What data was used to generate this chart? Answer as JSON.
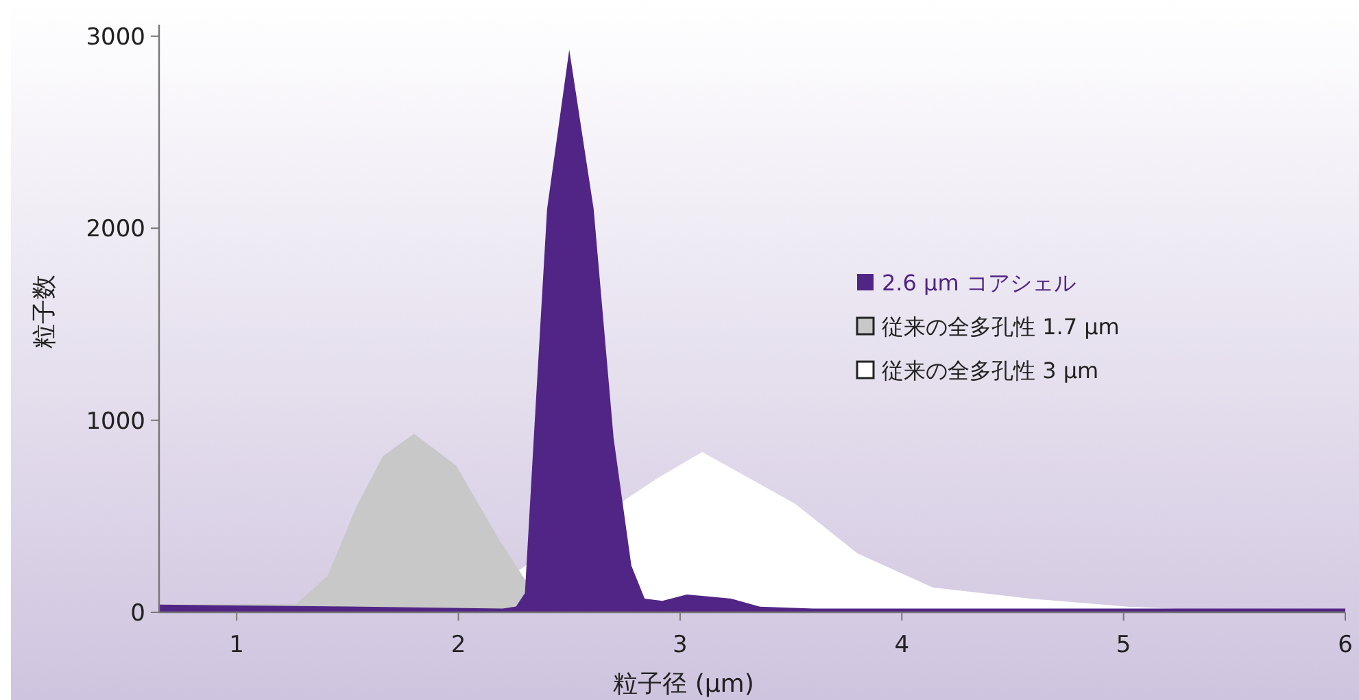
{
  "chart_data": {
    "type": "area",
    "xlabel": "粒子径 (µm)",
    "ylabel": "粒子数",
    "xlim": [
      0.65,
      6
    ],
    "xticks": [
      1,
      2,
      3,
      4,
      5,
      6
    ],
    "ylim": [
      0,
      3060
    ],
    "yticks": [
      0,
      1000,
      2000,
      3000
    ],
    "grid": false,
    "legend": "right",
    "series": [
      {
        "name": "2.6 µm コアシェル",
        "color": "#512585",
        "x": [
          0.65,
          1.5,
          2.2,
          2.26,
          2.3,
          2.34,
          2.4,
          2.5,
          2.61,
          2.7,
          2.78,
          2.84,
          2.92,
          3.03,
          3.15,
          3.23,
          3.36,
          3.6,
          4,
          5,
          6
        ],
        "values": [
          40,
          30,
          20,
          30,
          100,
          907,
          2100,
          2930,
          2100,
          907,
          243,
          71,
          60,
          93,
          80,
          71,
          29,
          20,
          20,
          20,
          20
        ]
      },
      {
        "name": "従来の全多孔性 1.7 µm",
        "color": "#c8c8c8",
        "x": [
          0.65,
          1.27,
          1.41,
          1.54,
          1.66,
          1.8,
          1.99,
          2.18,
          2.3,
          2.5
        ],
        "values": [
          40,
          45,
          190,
          550,
          814,
          930,
          764,
          386,
          171,
          0
        ]
      },
      {
        "name": "従来の全多孔性 3 µm",
        "color": "#ffffff",
        "x": [
          0.65,
          2.0,
          2.9,
          3.1,
          3.52,
          3.8,
          4.14,
          4.58,
          5.02,
          5.4,
          6
        ],
        "values": [
          0,
          10,
          700,
          835,
          564,
          307,
          129,
          71,
          29,
          10,
          5
        ]
      }
    ]
  }
}
